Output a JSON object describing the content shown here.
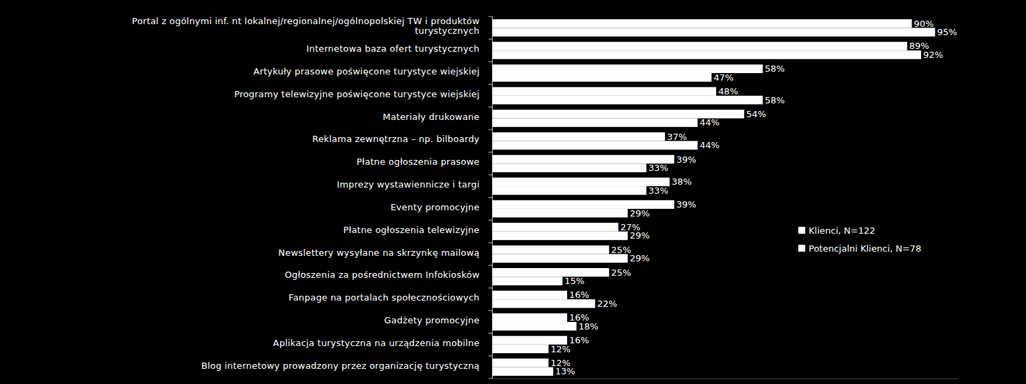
{
  "chart_data": {
    "type": "bar",
    "orientation": "horizontal",
    "categories": [
      "Portal z ogólnymi inf. nt lokalnej/regionalnej/ogólnopolskiej TW i produktów turystycznych",
      "Internetowa baza ofert turystycznych",
      "Artykuły prasowe poświęcone turystyce wiejskiej",
      "Programy telewizyjne poświęcone turystyce wiejskiej",
      "Materiały drukowane",
      "Reklama zewnętrzna – np. bilboardy",
      "Płatne ogłoszenia prasowe",
      "Imprezy wystawiennicze i targi",
      "Eventy promocyjne",
      "Płatne ogłoszenia telewizyjne",
      "Newslettery wysyłane na skrzynkę mailową",
      "Ogłoszenia za pośrednictwem Infokiosków",
      "Fanpage na portalach społecznościowych",
      "Gadżety promocyjne",
      "Aplikacja turystyczna na urządzenia mobilne",
      "Blog internetowy prowadzony przez organizację turystyczną"
    ],
    "series": [
      {
        "name": "Klienci, N=122",
        "color": "#ffffff",
        "values": [
          90,
          89,
          58,
          48,
          54,
          37,
          39,
          38,
          39,
          27,
          25,
          25,
          16,
          16,
          16,
          12
        ],
        "value_labels": [
          "90%",
          "89%",
          "58%",
          "48%",
          "54%",
          "37%",
          "39%",
          "38%",
          "39%",
          "27%",
          "25%",
          "25%",
          "16%",
          "16%",
          "16%",
          "12%"
        ]
      },
      {
        "name": "Potencjalni Klienci, N=78",
        "color": "#ffffff",
        "values": [
          95,
          92,
          47,
          58,
          44,
          44,
          33,
          33,
          29,
          29,
          29,
          15,
          22,
          18,
          12,
          13
        ],
        "value_labels": [
          "95%",
          "92%",
          "47%",
          "58%",
          "44%",
          "44%",
          "33%",
          "33%",
          "29%",
          "29%",
          "29%",
          "15%",
          "22%",
          "18%",
          "12%",
          "13%"
        ]
      }
    ],
    "xlim": [
      0,
      100
    ],
    "xticks": [],
    "tick_labels": "y",
    "data_labels": true,
    "legend": "right",
    "grid": false
  }
}
